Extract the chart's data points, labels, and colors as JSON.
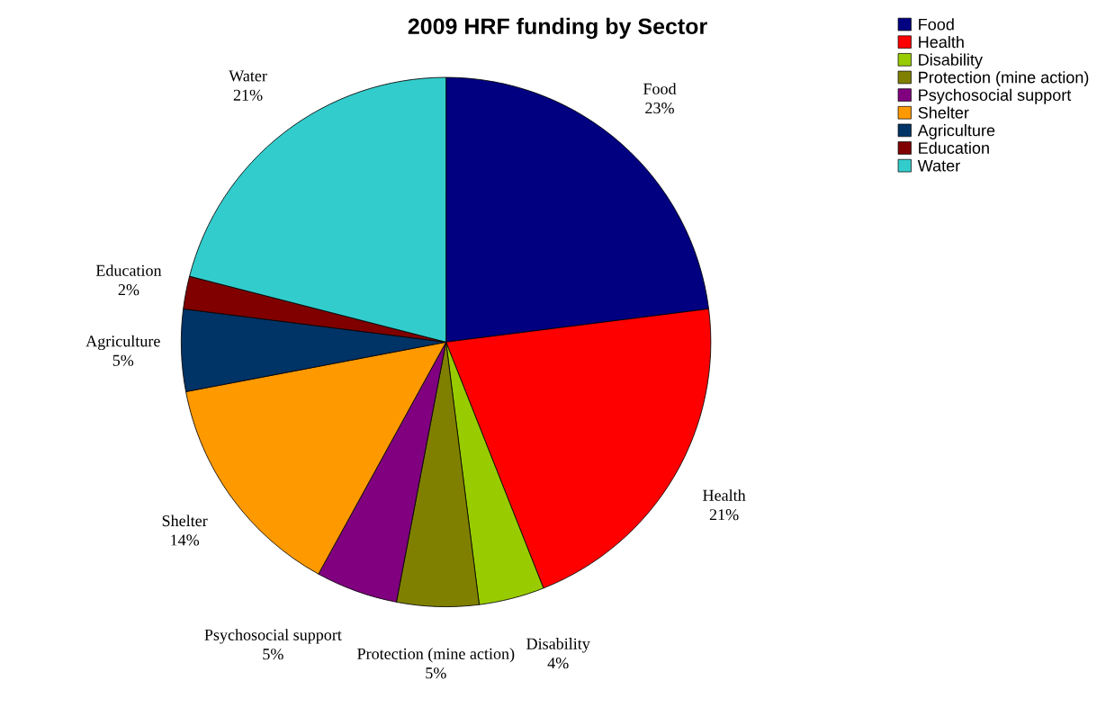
{
  "chart_data": {
    "type": "pie",
    "title": "2009 HRF funding by Sector",
    "categories": [
      "Food",
      "Health",
      "Disability",
      "Protection (mine action)",
      "Psychosocial support",
      "Shelter",
      "Agriculture",
      "Education",
      "Water"
    ],
    "values": [
      23,
      21,
      4,
      5,
      5,
      14,
      5,
      2,
      21
    ],
    "value_labels": [
      "23%",
      "21%",
      "4%",
      "5%",
      "5%",
      "14%",
      "5%",
      "2%",
      "21%"
    ],
    "colors": [
      "#000080",
      "#ff0000",
      "#99cc00",
      "#808000",
      "#800080",
      "#ff9900",
      "#003366",
      "#800000",
      "#33cccc"
    ],
    "legend": "top right"
  }
}
